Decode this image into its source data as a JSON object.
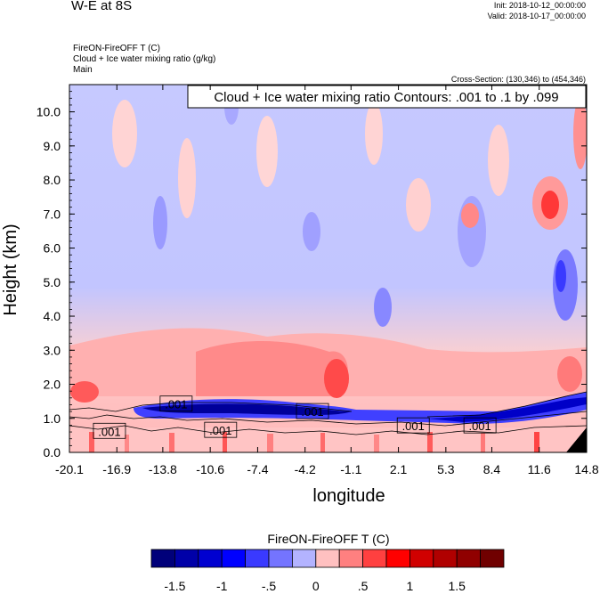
{
  "header": {
    "title": "W-E at 8S",
    "init": "Init: 2018-10-12_00:00:00",
    "valid": "Valid: 2018-10-17_00:00:00",
    "subtitle_lines": [
      "FireON-FireOFF T   (C)",
      "Cloud + Ice water mixing ratio   (g/kg)",
      "Main"
    ],
    "cross_section": "Cross-Section: (130,346) to (454,346)"
  },
  "chart_data": {
    "type": "heatmap",
    "title": "W-E at 8S",
    "contour_info": "Cloud + Ice water mixing ratio Contours: .001 to .1 by .099",
    "xlabel": "longitude",
    "ylabel": "Height (km)",
    "xlim": [
      -20.1,
      14.8
    ],
    "ylim": [
      0.0,
      10.8
    ],
    "x_ticks": [
      "-20.1",
      "-16.9",
      "-13.8",
      "-10.6",
      "-7.4",
      "-4.2",
      "-1.1",
      "2.1",
      "5.3",
      "8.4",
      "11.6",
      "14.8"
    ],
    "y_ticks": [
      "0.0",
      "1.0",
      "2.0",
      "3.0",
      "4.0",
      "5.0",
      "6.0",
      "7.0",
      "8.0",
      "9.0",
      "10.0"
    ],
    "contour_labels": [
      {
        "text": ".001",
        "lon": -17.4,
        "height": 0.62
      },
      {
        "text": ".001",
        "lon": -12.9,
        "height": 1.42
      },
      {
        "text": ".001",
        "lon": -9.9,
        "height": 0.65
      },
      {
        "text": ".001",
        "lon": -3.7,
        "height": 1.2
      },
      {
        "text": ".001",
        "lon": 3.1,
        "height": 0.78
      },
      {
        "text": ".001",
        "lon": 7.6,
        "height": 0.78
      }
    ],
    "colorbar": {
      "title": "FireON-FireOFF T  (C)",
      "levels": [
        "-1.5",
        "-1",
        "-.5",
        "0",
        ".5",
        "1",
        "1.5"
      ],
      "colors": [
        "#00007a",
        "#0000a8",
        "#0000d0",
        "#0000ff",
        "#3a3aff",
        "#7474ff",
        "#b3b3ff",
        "#ffc0c0",
        "#ff8080",
        "#ff4040",
        "#ff0000",
        "#d00000",
        "#b00000",
        "#900000",
        "#700000"
      ]
    }
  }
}
